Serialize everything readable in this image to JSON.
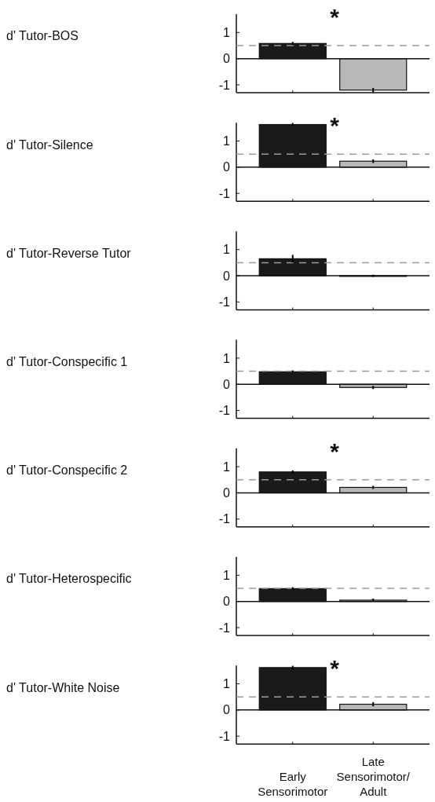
{
  "chart_data": [
    {
      "type": "bar",
      "ylabel": "d' Tutor-BOS",
      "categories": [
        null,
        null
      ],
      "values": [
        0.58,
        -1.2
      ],
      "errors": [
        0.06,
        0.08
      ],
      "colors": [
        "#1a1a1a",
        "#b8b8b8"
      ],
      "ylim": [
        -1.3,
        1.7
      ],
      "yticks": [
        -1,
        0,
        1
      ],
      "ref_lines": [
        {
          "axis": "y",
          "value": 0.5,
          "color": "#9a9a9a",
          "line_style": "dashed"
        }
      ],
      "annotations": [
        "*"
      ]
    },
    {
      "type": "bar",
      "ylabel": "d' Tutor-Silence",
      "categories": [
        null,
        null
      ],
      "values": [
        1.63,
        0.23
      ],
      "errors": [
        0.06,
        0.07
      ],
      "colors": [
        "#1a1a1a",
        "#b8b8b8"
      ],
      "ylim": [
        -1.3,
        1.7
      ],
      "yticks": [
        -1,
        0,
        1
      ],
      "ref_lines": [
        {
          "axis": "y",
          "value": 0.5,
          "color": "#9a9a9a",
          "line_style": "dashed"
        }
      ],
      "annotations": [
        "*"
      ]
    },
    {
      "type": "bar",
      "ylabel": "d' Tutor-Reverse Tutor",
      "categories": [
        null,
        null
      ],
      "values": [
        0.65,
        0
      ],
      "errors": [
        0.15,
        0.04
      ],
      "colors": [
        "#1a1a1a",
        "#b8b8b8"
      ],
      "ylim": [
        -1.3,
        1.7
      ],
      "yticks": [
        -1,
        0,
        1
      ],
      "ref_lines": [
        {
          "axis": "y",
          "value": 0.5,
          "color": "#9a9a9a",
          "line_style": "dashed"
        }
      ]
    },
    {
      "type": "bar",
      "ylabel": "d' Tutor-Conspecific 1",
      "categories": [
        null,
        null
      ],
      "values": [
        0.48,
        -0.12
      ],
      "errors": [
        0.05,
        0.06
      ],
      "colors": [
        "#1a1a1a",
        "#b8b8b8"
      ],
      "ylim": [
        -1.3,
        1.7
      ],
      "yticks": [
        -1,
        0,
        1
      ],
      "ref_lines": [
        {
          "axis": "y",
          "value": 0.5,
          "color": "#9a9a9a",
          "line_style": "dashed"
        }
      ]
    },
    {
      "type": "bar",
      "ylabel": "d' Tutor-Conspecific 2",
      "categories": [
        null,
        null
      ],
      "values": [
        0.8,
        0.21
      ],
      "errors": [
        0.06,
        0.06
      ],
      "colors": [
        "#1a1a1a",
        "#b8b8b8"
      ],
      "ylim": [
        -1.3,
        1.7
      ],
      "yticks": [
        -1,
        0,
        1
      ],
      "ref_lines": [
        {
          "axis": "y",
          "value": 0.5,
          "color": "#9a9a9a",
          "line_style": "dashed"
        }
      ],
      "annotations": [
        "*"
      ]
    },
    {
      "type": "bar",
      "ylabel": "d' Tutor-Heterospecific",
      "categories": [
        null,
        null
      ],
      "values": [
        0.49,
        0.05
      ],
      "errors": [
        0.05,
        0.06
      ],
      "colors": [
        "#1a1a1a",
        "#b8b8b8"
      ],
      "ylim": [
        -1.3,
        1.7
      ],
      "yticks": [
        -1,
        0,
        1
      ],
      "ref_lines": [
        {
          "axis": "y",
          "value": 0.5,
          "color": "#9a9a9a",
          "line_style": "dashed"
        }
      ]
    },
    {
      "type": "bar",
      "ylabel": "d' Tutor-White Noise",
      "categories": [
        "Early Sensorimotor",
        "Late Sensorimotor/Adult"
      ],
      "values": [
        1.62,
        0.22
      ],
      "errors": [
        0.07,
        0.08
      ],
      "colors": [
        "#1a1a1a",
        "#b8b8b8"
      ],
      "ylim": [
        -1.3,
        1.7
      ],
      "yticks": [
        -1,
        0,
        1
      ],
      "ref_lines": [
        {
          "axis": "y",
          "value": 0.5,
          "color": "#9a9a9a",
          "line_style": "dashed"
        }
      ],
      "annotations": [
        "*"
      ]
    }
  ]
}
